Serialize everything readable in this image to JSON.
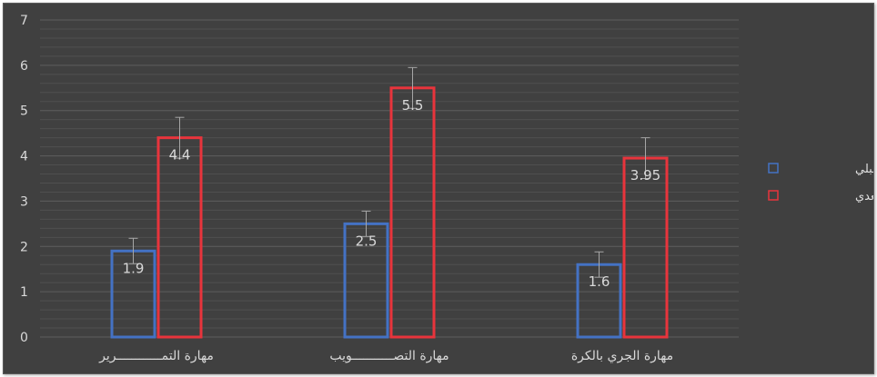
{
  "chart_data": {
    "type": "bar",
    "categories": [
      "مهارة التمــــــــــــرير",
      "مهارة التصـــــــــــويب",
      "مهارة الجري بالكرة"
    ],
    "series": [
      {
        "name": "القياس القبلي",
        "values": [
          1.9,
          2.5,
          1.6
        ],
        "error": [
          0.28,
          0.28,
          0.28
        ],
        "color": "#4472c4"
      },
      {
        "name": "القياس البعدي",
        "values": [
          4.4,
          5.5,
          3.95
        ],
        "error": [
          0.45,
          0.45,
          0.45
        ],
        "color": "#e8343c"
      }
    ],
    "data_labels": [
      [
        "1.9",
        "2.5",
        "1.6"
      ],
      [
        "4.4",
        "5.5",
        "3.95"
      ]
    ],
    "y_ticks": [
      "0",
      "1",
      "2",
      "3",
      "4",
      "5",
      "6",
      "7"
    ],
    "ylim": [
      0,
      7
    ],
    "minor_grid_step": 0.2,
    "grid": true,
    "legend_position": "right",
    "title": "",
    "xlabel": "",
    "ylabel": "",
    "colors": {
      "background": "#404040",
      "gridline": "#5c5c5c",
      "text": "#d9d9d9",
      "error_bar": "#a6a6a6"
    }
  }
}
